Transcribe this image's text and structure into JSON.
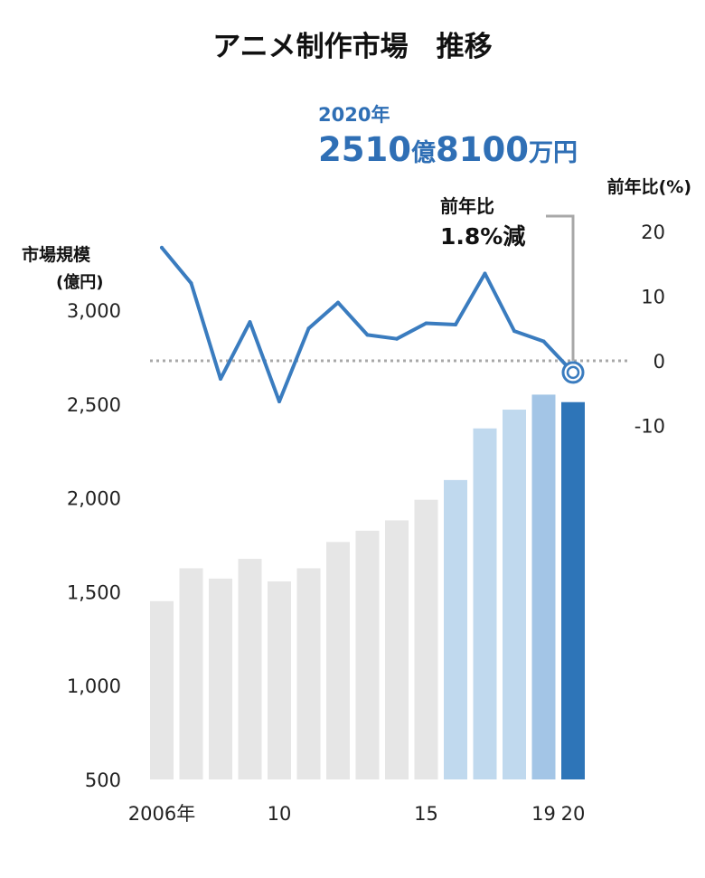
{
  "chart_data": {
    "type": "bar+line",
    "title": "アニメ制作市場　推移",
    "left_axis": {
      "label_line1": "市場規模",
      "label_line2": "(億円)",
      "ticks": [
        "500",
        "1,000",
        "1,500",
        "2,000",
        "2,500",
        "3,000"
      ],
      "ylim": [
        500,
        3000
      ]
    },
    "right_axis": {
      "label": "前年比(%)",
      "ticks": [
        "20",
        "10",
        "0",
        "-10"
      ],
      "ylim": [
        -10,
        20
      ]
    },
    "x_tick_labels": [
      {
        "index": 0,
        "text": "2006年"
      },
      {
        "index": 4,
        "text": "10"
      },
      {
        "index": 9,
        "text": "15"
      },
      {
        "index": 13,
        "text": "19"
      },
      {
        "index": 14,
        "text": "20"
      }
    ],
    "bars": {
      "years": [
        2006,
        2007,
        2008,
        2009,
        2010,
        2011,
        2012,
        2013,
        2014,
        2015,
        2016,
        2017,
        2018,
        2019,
        2020
      ],
      "values": [
        1450,
        1625,
        1570,
        1675,
        1555,
        1625,
        1765,
        1825,
        1880,
        1990,
        2095,
        2370,
        2470,
        2550,
        2510
      ],
      "colors": [
        "#e6e6e6",
        "#e6e6e6",
        "#e6e6e6",
        "#e6e6e6",
        "#e6e6e6",
        "#e6e6e6",
        "#e6e6e6",
        "#e6e6e6",
        "#e6e6e6",
        "#e6e6e6",
        "#c0d9ee",
        "#c0d9ee",
        "#c0d9ee",
        "#a3c5e6",
        "#2e75b8"
      ]
    },
    "yoy_line": {
      "values": [
        17.5,
        12,
        -2.8,
        6,
        -6.3,
        5,
        9,
        4,
        3.4,
        5.8,
        5.6,
        13.5,
        4.6,
        3,
        -1.8
      ],
      "color": "#3a7cbf"
    },
    "callout_2020": {
      "year_label": "2020年",
      "value_num1": "2510",
      "value_unit1": "億",
      "value_num2": "8100",
      "value_unit2": "万円",
      "color": "#2f6fb5"
    },
    "callout_yoy": {
      "line1": "前年比",
      "line2": "1.8%減"
    }
  }
}
